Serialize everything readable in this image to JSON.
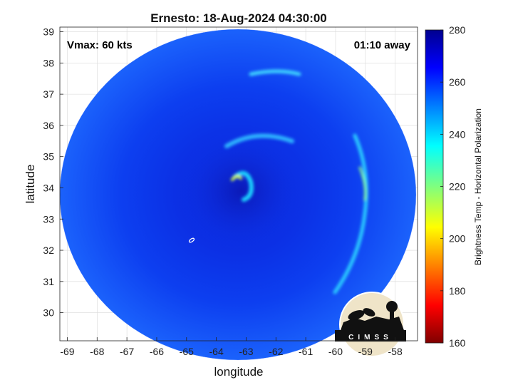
{
  "chart_data": {
    "type": "heatmap",
    "title": "Ernesto: 18-Aug-2024 04:30:00",
    "xlabel": "longitude",
    "ylabel": "latitude",
    "xlim": [
      -69.25,
      -57.25
    ],
    "ylim": [
      29.1,
      39.15
    ],
    "xticks": [
      -69,
      -68,
      -67,
      -66,
      -65,
      -64,
      -63,
      -62,
      -61,
      -60,
      -59,
      -58
    ],
    "yticks": [
      30,
      31,
      32,
      33,
      34,
      35,
      36,
      37,
      38,
      39
    ],
    "grid": true,
    "annotations": {
      "vmax": "Vmax: 60 kts",
      "away": "01:10 away"
    },
    "center": {
      "lon": -63.3,
      "lat": 34.2
    },
    "colorbar": {
      "label": "Brightness Temp - Horizontal Polarization",
      "range": [
        160,
        280
      ],
      "ticks": [
        160,
        180,
        200,
        220,
        240,
        260,
        280
      ],
      "colormap": "jet"
    },
    "logo_text": "CIMSS"
  }
}
